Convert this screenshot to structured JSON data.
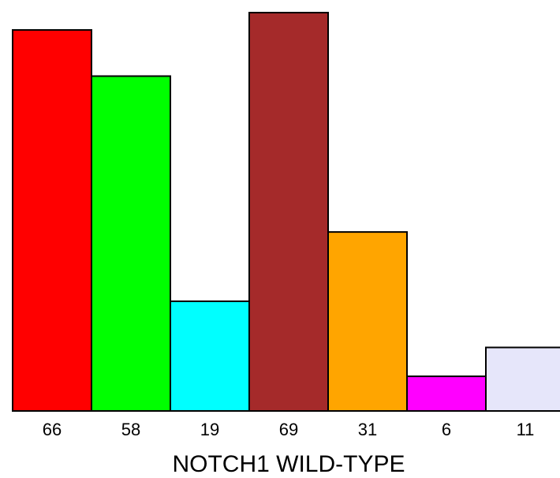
{
  "chart_data": {
    "type": "bar",
    "title": "",
    "xlabel": "NOTCH1 WILD-TYPE",
    "ylabel": "",
    "categories": [
      "66",
      "58",
      "19",
      "69",
      "31",
      "6",
      "11"
    ],
    "values": [
      66,
      58,
      19,
      69,
      31,
      6,
      11
    ],
    "colors": [
      "#ff0000",
      "#00ff00",
      "#00ffff",
      "#a52a2a",
      "#ffa500",
      "#ff00ff",
      "#e6e6fa"
    ],
    "ylim": [
      0,
      69
    ],
    "grid": false,
    "legend": "none"
  }
}
